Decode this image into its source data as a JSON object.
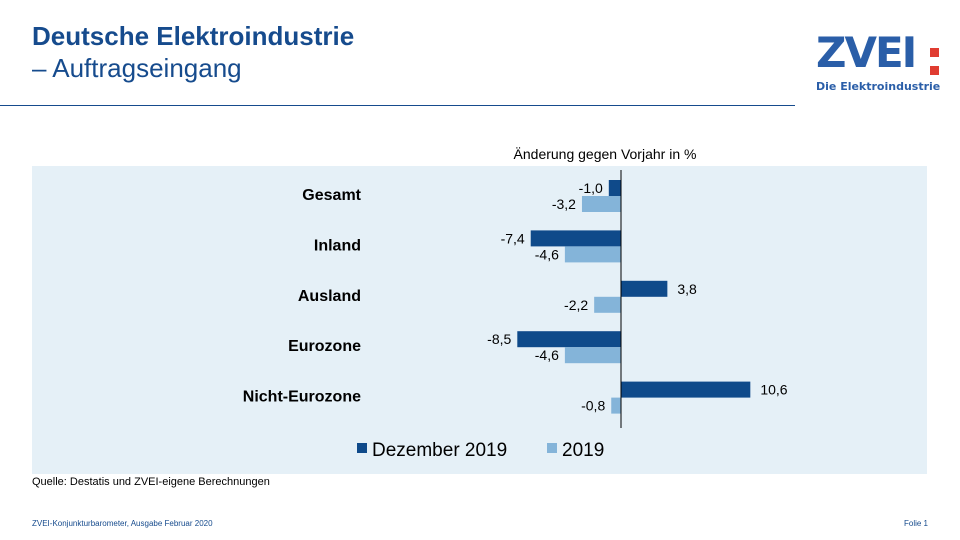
{
  "header": {
    "title_line1": "Deutsche Elektroindustrie",
    "title_line2": "– Auftragseingang"
  },
  "logo": {
    "wordmark": "ZVEI",
    "tagline": "Die Elektroindustrie"
  },
  "colors": {
    "primary": "#164b8d",
    "series_dec": "#0f4a8a",
    "series_year": "#84b4d9",
    "panel": "#e5f0f7",
    "logo_accent": "#e03c31"
  },
  "chart_data": {
    "type": "bar",
    "orientation": "horizontal",
    "title": "Änderung gegen Vorjahr in %",
    "categories": [
      "Gesamt",
      "Inland",
      "Ausland",
      "Eurozone",
      "Nicht-Eurozone"
    ],
    "series": [
      {
        "name": "Dezember 2019",
        "values": [
          -1.0,
          -7.4,
          3.8,
          -8.5,
          10.6
        ],
        "labels": [
          "-1,0",
          "-7,4",
          "3,8",
          "-8,5",
          "10,6"
        ],
        "color": "#0f4a8a"
      },
      {
        "name": "2019",
        "values": [
          -3.2,
          -4.6,
          -2.2,
          -4.6,
          -0.8
        ],
        "labels": [
          "-3,2",
          "-4,6",
          "-2,2",
          "-4,6",
          "-0,8"
        ],
        "color": "#84b4d9"
      }
    ],
    "xlim": [
      -10,
      12
    ],
    "grid": false,
    "legend_position": "bottom"
  },
  "source": "Quelle: Destatis und ZVEI-eigene Berechnungen",
  "footer": {
    "left": "ZVEI-Konjunkturbarometer,  Ausgabe  Februar 2020",
    "right": "Folie 1"
  }
}
